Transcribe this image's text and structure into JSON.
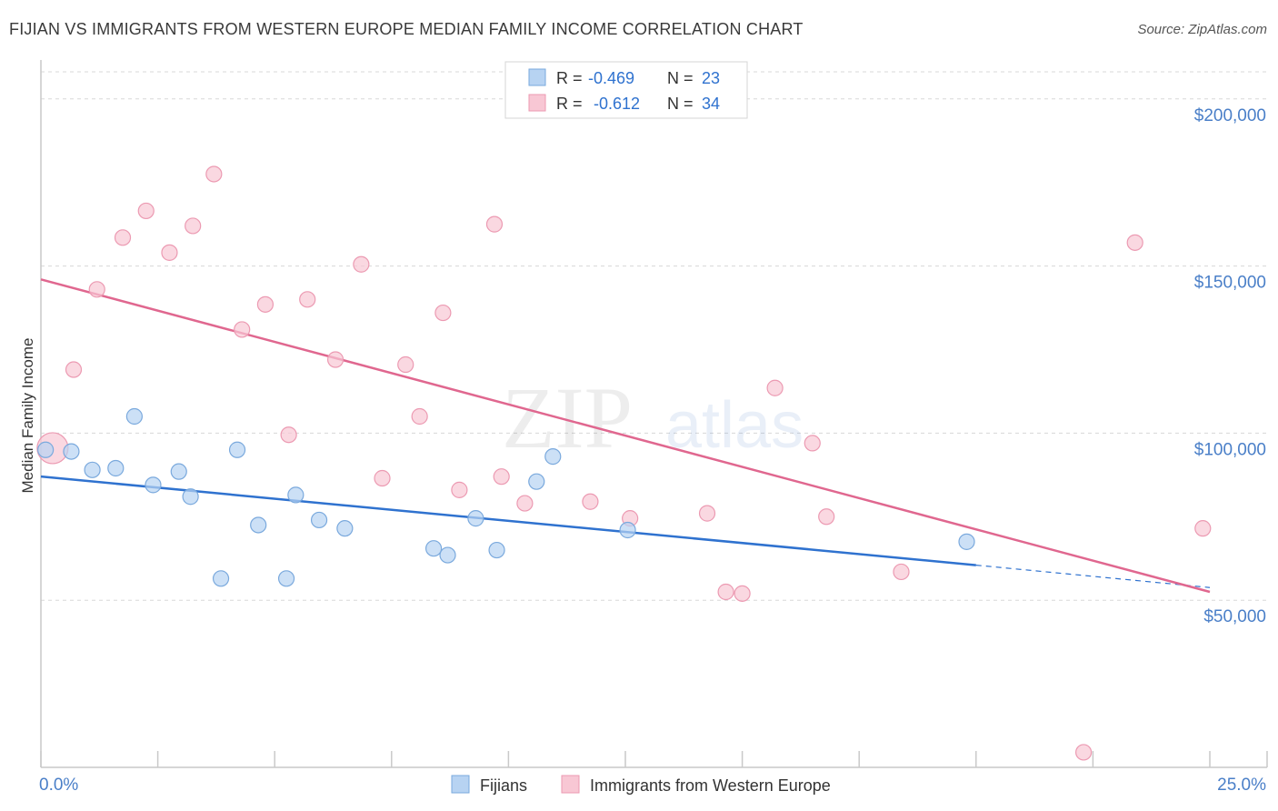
{
  "title": "FIJIAN VS IMMIGRANTS FROM WESTERN EUROPE MEDIAN FAMILY INCOME CORRELATION CHART",
  "source": "Source: ZipAtlas.com",
  "watermark": {
    "zip": "ZIP",
    "atlas": "atlas"
  },
  "colors": {
    "blue_fill": "#b7d3f2",
    "blue_stroke": "#7aa9dd",
    "blue_line": "#2f72cf",
    "pink_fill": "#f8c7d4",
    "pink_stroke": "#ec9ab2",
    "pink_line": "#e0678f",
    "axis_label": "#4a7fc8",
    "grid": "#d8d8d8"
  },
  "legend_top": [
    {
      "r_label": "R =",
      "r_value": "-0.469",
      "n_label": "N =",
      "n_value": "23",
      "series": "blue"
    },
    {
      "r_label": "R =",
      "r_value": "-0.612",
      "n_label": "N =",
      "n_value": "34",
      "series": "pink"
    }
  ],
  "chart_data": {
    "type": "scatter",
    "title": "FIJIAN VS IMMIGRANTS FROM WESTERN EUROPE MEDIAN FAMILY INCOME CORRELATION CHART",
    "ylabel": "Median Family Income",
    "xlabel": "",
    "xlim": [
      0,
      25
    ],
    "ylim": [
      0,
      210000
    ],
    "x_tick_labels": [
      "0.0%",
      "25.0%"
    ],
    "y_ticks": [
      50000,
      100000,
      150000,
      200000
    ],
    "y_tick_labels": [
      "$50,000",
      "$100,000",
      "$150,000",
      "$200,000"
    ],
    "series": [
      {
        "name": "Fijians",
        "color": "blue",
        "points": [
          {
            "x": 0.1,
            "y": 95000,
            "big": false
          },
          {
            "x": 0.65,
            "y": 94500
          },
          {
            "x": 1.1,
            "y": 89000
          },
          {
            "x": 1.6,
            "y": 89500
          },
          {
            "x": 2.0,
            "y": 105000
          },
          {
            "x": 2.4,
            "y": 84500
          },
          {
            "x": 2.95,
            "y": 88500
          },
          {
            "x": 3.2,
            "y": 81000
          },
          {
            "x": 3.85,
            "y": 56500
          },
          {
            "x": 4.2,
            "y": 95000
          },
          {
            "x": 4.65,
            "y": 72500
          },
          {
            "x": 5.25,
            "y": 56500
          },
          {
            "x": 5.45,
            "y": 81500
          },
          {
            "x": 5.95,
            "y": 74000
          },
          {
            "x": 6.5,
            "y": 71500
          },
          {
            "x": 8.4,
            "y": 65500
          },
          {
            "x": 8.7,
            "y": 63500
          },
          {
            "x": 9.3,
            "y": 74500
          },
          {
            "x": 9.75,
            "y": 65000
          },
          {
            "x": 10.6,
            "y": 85500
          },
          {
            "x": 10.95,
            "y": 93000
          },
          {
            "x": 12.55,
            "y": 71000
          },
          {
            "x": 19.8,
            "y": 67500
          }
        ],
        "trend": {
          "x0": 0,
          "y0": 87000,
          "x1": 20,
          "y1": 60500,
          "dash_x1": 25,
          "dash_y1": 53800
        }
      },
      {
        "name": "Immigrants from Western Europe",
        "color": "pink",
        "points": [
          {
            "x": 0.25,
            "y": 95500,
            "big": true
          },
          {
            "x": 0.7,
            "y": 119000
          },
          {
            "x": 1.2,
            "y": 143000
          },
          {
            "x": 1.75,
            "y": 158500
          },
          {
            "x": 2.25,
            "y": 166500
          },
          {
            "x": 2.75,
            "y": 154000
          },
          {
            "x": 3.25,
            "y": 162000
          },
          {
            "x": 3.7,
            "y": 177500
          },
          {
            "x": 4.3,
            "y": 131000
          },
          {
            "x": 4.8,
            "y": 138500
          },
          {
            "x": 5.3,
            "y": 99500
          },
          {
            "x": 5.7,
            "y": 140000
          },
          {
            "x": 6.3,
            "y": 122000
          },
          {
            "x": 6.85,
            "y": 150500
          },
          {
            "x": 7.3,
            "y": 86500
          },
          {
            "x": 7.8,
            "y": 120500
          },
          {
            "x": 8.1,
            "y": 105000
          },
          {
            "x": 8.6,
            "y": 136000
          },
          {
            "x": 8.95,
            "y": 83000
          },
          {
            "x": 9.7,
            "y": 162500
          },
          {
            "x": 9.85,
            "y": 87000
          },
          {
            "x": 10.35,
            "y": 79000
          },
          {
            "x": 11.75,
            "y": 79500
          },
          {
            "x": 12.6,
            "y": 74500
          },
          {
            "x": 14.25,
            "y": 76000
          },
          {
            "x": 14.65,
            "y": 52500
          },
          {
            "x": 15.0,
            "y": 52000
          },
          {
            "x": 15.7,
            "y": 113500
          },
          {
            "x": 16.5,
            "y": 97000
          },
          {
            "x": 16.8,
            "y": 75000
          },
          {
            "x": 18.4,
            "y": 58500
          },
          {
            "x": 22.3,
            "y": 4500
          },
          {
            "x": 23.4,
            "y": 157000
          },
          {
            "x": 24.85,
            "y": 71500
          }
        ],
        "trend": {
          "x0": 0,
          "y0": 146000,
          "x1": 25,
          "y1": 52500
        }
      }
    ],
    "legend": [
      "Fijians",
      "Immigrants from Western Europe"
    ]
  }
}
